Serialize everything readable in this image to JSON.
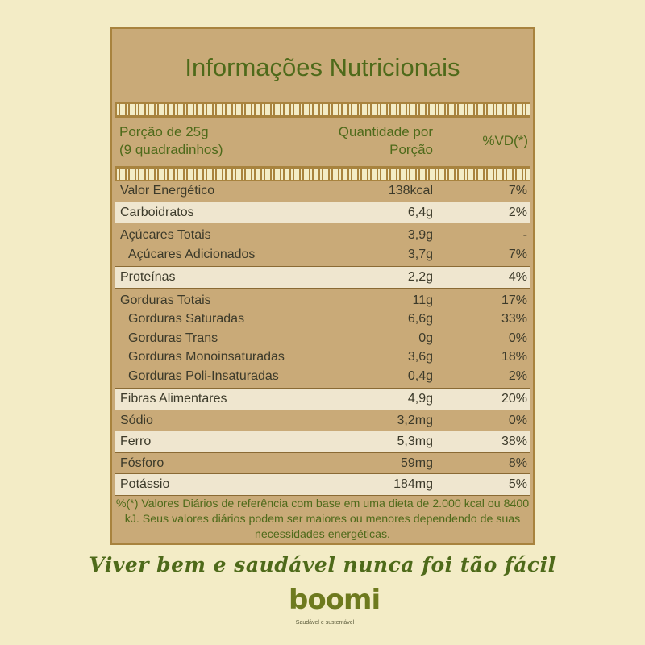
{
  "panel": {
    "title": "Informações Nutricionais",
    "header": {
      "porcao_line1": "Porção de 25g",
      "porcao_line2": "(9 quadradinhos)",
      "qtd_line1": "Quantidade por",
      "qtd_line2": "Porção",
      "vd": "%VD(*)"
    },
    "rows": [
      {
        "lines": [
          {
            "name": "Valor Energético",
            "qty": "138kcal",
            "vd": "7%"
          }
        ]
      },
      {
        "lines": [
          {
            "name": "Carboidratos",
            "qty": "6,4g",
            "vd": "2%"
          }
        ]
      },
      {
        "lines": [
          {
            "name": "Açúcares Totais",
            "qty": "3,9g",
            "vd": "-"
          },
          {
            "name": "Açúcares Adicionados",
            "qty": "3,7g",
            "vd": "7%"
          }
        ]
      },
      {
        "lines": [
          {
            "name": "Proteínas",
            "qty": "2,2g",
            "vd": "4%"
          }
        ]
      },
      {
        "lines": [
          {
            "name": "Gorduras Totais",
            "qty": "11g",
            "vd": "17%"
          },
          {
            "name": "Gorduras Saturadas",
            "qty": "6,6g",
            "vd": "33%"
          },
          {
            "name": "Gorduras Trans",
            "qty": "0g",
            "vd": "0%"
          },
          {
            "name": "Gorduras Monoinsaturadas",
            "qty": "3,6g",
            "vd": "18%"
          },
          {
            "name": "Gorduras Poli-Insaturadas",
            "qty": "0,4g",
            "vd": "2%"
          }
        ]
      },
      {
        "lines": [
          {
            "name": "Fibras Alimentares",
            "qty": "4,9g",
            "vd": "20%"
          }
        ]
      },
      {
        "lines": [
          {
            "name": "Sódio",
            "qty": "3,2mg",
            "vd": "0%"
          }
        ]
      },
      {
        "lines": [
          {
            "name": "Ferro",
            "qty": "5,3mg",
            "vd": "38%"
          }
        ]
      },
      {
        "lines": [
          {
            "name": "Fósforo",
            "qty": "59mg",
            "vd": "8%"
          }
        ]
      },
      {
        "lines": [
          {
            "name": "Potássio",
            "qty": "184mg",
            "vd": "5%"
          }
        ]
      }
    ],
    "footnote": "%(*) Valores Diários de referência com base em uma dieta de 2.000 kcal ou 8400 kJ. Seus valores diários podem ser maiores ou menores dependendo de suas necessidades energéticas."
  },
  "tagline": "Viver bem e saudável nunca foi tão fácil",
  "logo": {
    "word": "boomi",
    "subtitle": "Saudável e sustentável"
  },
  "colors": {
    "background": "#f3ecc6",
    "panel": "#c9aa78",
    "light_row": "#efe6cf",
    "accent_green": "#4e6a1a",
    "border": "#a8833e"
  }
}
